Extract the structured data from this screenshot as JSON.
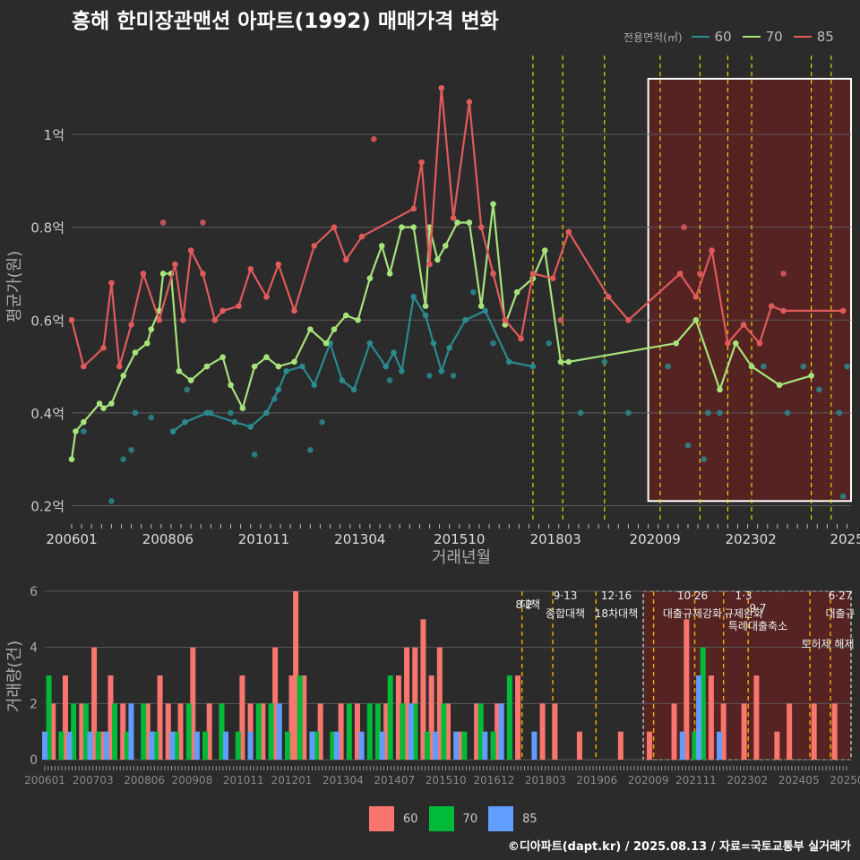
{
  "title": "흥해 한미장관맨션 아파트(1992) 매매가격 변화",
  "credit": "©디아파트(dapt.kr) / 2025.08.13 / 자료=국토교통부 실거래가",
  "colors": {
    "bg": "#2b2b2b",
    "grid": "#5a5a5a",
    "s60": "#2a8a8e",
    "s70": "#a6e37a",
    "s85": "#e05a5a",
    "v60": "#f8766d",
    "v70": "#00ba38",
    "v85": "#619cff",
    "policy": "#e6d200",
    "policy2": "#e6a800",
    "highlight": "#7a1e1e"
  },
  "chart_data": [
    {
      "type": "line",
      "title": "흥해 한미장관맨션 아파트(1992) 매매가격 변화",
      "xlabel": "거래년월",
      "ylabel": "평균가(원)",
      "legend_title": "전용면적(㎡)",
      "xlim": [
        2006.0,
        2025.6
      ],
      "ylim": [
        0.17,
        1.17
      ],
      "x_ticks": [
        "200601",
        "200806",
        "201011",
        "201304",
        "201510",
        "201803",
        "202009",
        "202302",
        "2025"
      ],
      "y_ticks": [
        "0.2억",
        "0.4억",
        "0.6억",
        "0.8억",
        "1억"
      ],
      "y_tick_values": [
        0.2,
        0.4,
        0.6,
        0.8,
        1.0
      ],
      "series": [
        {
          "name": "60",
          "x": [
            2008.55,
            2008.85,
            2009.4,
            2010.1,
            2010.5,
            2010.9,
            2011.2,
            2011.4,
            2011.8,
            2012.1,
            2012.5,
            2012.8,
            2013.1,
            2013.5,
            2013.9,
            2014.1,
            2014.3,
            2014.6,
            2014.9,
            2015.1,
            2015.3,
            2015.5,
            2015.9,
            2016.4,
            2017.0,
            2017.6
          ],
          "y": [
            0.36,
            0.38,
            0.4,
            0.38,
            0.37,
            0.4,
            0.45,
            0.49,
            0.5,
            0.46,
            0.55,
            0.47,
            0.45,
            0.55,
            0.5,
            0.53,
            0.49,
            0.65,
            0.61,
            0.55,
            0.49,
            0.54,
            0.6,
            0.62,
            0.51,
            0.5
          ]
        },
        {
          "name": "70",
          "x": [
            2006.0,
            2006.1,
            2006.3,
            2006.7,
            2006.8,
            2007.0,
            2007.3,
            2007.6,
            2007.9,
            2008.0,
            2008.2,
            2008.3,
            2008.5,
            2008.7,
            2009.0,
            2009.4,
            2009.8,
            2010.0,
            2010.3,
            2010.6,
            2010.9,
            2011.2,
            2011.6,
            2012.0,
            2012.4,
            2012.6,
            2012.9,
            2013.2,
            2013.5,
            2013.8,
            2014.0,
            2014.3,
            2014.6,
            2014.9,
            2015.0,
            2015.2,
            2015.4,
            2015.7,
            2016.0,
            2016.3,
            2016.6,
            2016.9,
            2017.2,
            2017.6,
            2017.9,
            2018.3,
            2018.5,
            2021.2,
            2021.7,
            2022.3,
            2022.7,
            2023.1,
            2023.8,
            2024.6
          ],
          "y": [
            0.3,
            0.36,
            0.38,
            0.42,
            0.41,
            0.42,
            0.48,
            0.53,
            0.55,
            0.58,
            0.62,
            0.7,
            0.7,
            0.49,
            0.47,
            0.5,
            0.52,
            0.46,
            0.41,
            0.5,
            0.52,
            0.5,
            0.51,
            0.58,
            0.55,
            0.58,
            0.61,
            0.6,
            0.69,
            0.76,
            0.7,
            0.8,
            0.8,
            0.63,
            0.8,
            0.73,
            0.76,
            0.81,
            0.81,
            0.63,
            0.85,
            0.59,
            0.66,
            0.69,
            0.75,
            0.51,
            0.51,
            0.55,
            0.6,
            0.45,
            0.55,
            0.5,
            0.46,
            0.48
          ]
        },
        {
          "name": "85",
          "x": [
            2006.0,
            2006.3,
            2006.8,
            2007.0,
            2007.2,
            2007.5,
            2007.8,
            2008.2,
            2008.6,
            2008.8,
            2009.0,
            2009.3,
            2009.6,
            2009.8,
            2010.2,
            2010.5,
            2010.9,
            2011.2,
            2011.6,
            2012.1,
            2012.6,
            2012.9,
            2013.3,
            2014.6,
            2014.8,
            2015.0,
            2015.3,
            2015.6,
            2016.0,
            2016.3,
            2016.6,
            2016.9,
            2017.3,
            2017.6,
            2018.1,
            2018.5,
            2019.5,
            2020.0,
            2021.3,
            2021.7,
            2022.1,
            2022.5,
            2022.9,
            2023.3,
            2023.6,
            2023.9,
            2025.4
          ],
          "y": [
            0.6,
            0.5,
            0.54,
            0.68,
            0.5,
            0.59,
            0.7,
            0.6,
            0.72,
            0.6,
            0.75,
            0.7,
            0.6,
            0.62,
            0.63,
            0.71,
            0.65,
            0.72,
            0.62,
            0.76,
            0.8,
            0.73,
            0.78,
            0.84,
            0.94,
            0.72,
            1.1,
            0.82,
            1.07,
            0.8,
            0.7,
            0.6,
            0.56,
            0.7,
            0.69,
            0.79,
            0.65,
            0.6,
            0.7,
            0.65,
            0.75,
            0.55,
            0.59,
            0.55,
            0.63,
            0.62,
            0.62
          ]
        }
      ],
      "scatter_extra": [
        {
          "series": "60",
          "points": [
            [
              2006.3,
              0.36
            ],
            [
              2007.0,
              0.21
            ],
            [
              2007.3,
              0.3
            ],
            [
              2007.5,
              0.32
            ],
            [
              2007.6,
              0.4
            ],
            [
              2008.0,
              0.39
            ],
            [
              2008.9,
              0.45
            ],
            [
              2009.5,
              0.4
            ],
            [
              2010.0,
              0.4
            ],
            [
              2010.6,
              0.31
            ],
            [
              2011.1,
              0.43
            ],
            [
              2012.0,
              0.32
            ],
            [
              2012.3,
              0.38
            ],
            [
              2014.0,
              0.47
            ],
            [
              2015.0,
              0.48
            ],
            [
              2015.6,
              0.48
            ],
            [
              2016.1,
              0.66
            ],
            [
              2016.6,
              0.55
            ],
            [
              2017.6,
              0.5
            ],
            [
              2018.0,
              0.55
            ],
            [
              2018.8,
              0.4
            ],
            [
              2019.4,
              0.51
            ],
            [
              2020.0,
              0.4
            ],
            [
              2021.0,
              0.5
            ],
            [
              2021.5,
              0.33
            ],
            [
              2021.9,
              0.3
            ],
            [
              2022.0,
              0.4
            ],
            [
              2022.3,
              0.4
            ],
            [
              2023.4,
              0.5
            ],
            [
              2024.0,
              0.4
            ],
            [
              2024.4,
              0.5
            ],
            [
              2024.8,
              0.45
            ],
            [
              2025.3,
              0.4
            ],
            [
              2025.4,
              0.22
            ],
            [
              2025.5,
              0.5
            ]
          ]
        },
        {
          "series": "85",
          "points": [
            [
              2008.3,
              0.81
            ],
            [
              2009.3,
              0.81
            ],
            [
              2013.6,
              0.99
            ],
            [
              2018.3,
              0.6
            ],
            [
              2021.4,
              0.8
            ],
            [
              2021.8,
              0.7
            ],
            [
              2023.9,
              0.7
            ]
          ]
        }
      ],
      "policy_lines": [
        2017.6,
        2018.35,
        2019.4,
        2020.8,
        2021.8,
        2022.5,
        2023.1,
        2024.6,
        2025.1
      ],
      "highlight": {
        "x": [
          2020.5,
          2025.6
        ],
        "y": [
          0.21,
          1.12
        ]
      }
    },
    {
      "type": "bar",
      "ylabel": "거래량(건)",
      "ylim": [
        0,
        6
      ],
      "y_ticks": [
        "0",
        "2",
        "4",
        "6"
      ],
      "y_tick_values": [
        0,
        2,
        4,
        6
      ],
      "x_ticks": [
        "200601",
        "200703",
        "200806",
        "200908",
        "201011",
        "201201",
        "201304",
        "201407",
        "201510",
        "201612",
        "201803",
        "201906",
        "202009",
        "202111",
        "202302",
        "202405",
        "20250"
      ],
      "legend": [
        "60",
        "70",
        "85"
      ],
      "annotations": [
        {
          "date": "8·2",
          "label": "대책"
        },
        {
          "date": "9·13",
          "label": "종합대책"
        },
        {
          "date": "12·16",
          "label": "18차대책"
        },
        {
          "date": "10·26",
          "label": "대출규제강화"
        },
        {
          "date": "1·3",
          "label": "규제완화"
        },
        {
          "date": "9·7",
          "label": "특례대출축소"
        },
        {
          "date": "",
          "label": "토허제 해제"
        },
        {
          "date": "6·27",
          "label": "대출규"
        }
      ],
      "bars": [
        {
          "series": "60",
          "x": [
            2006.2,
            2006.5,
            2006.9,
            2007.2,
            2007.4,
            2007.6,
            2007.9,
            2008.1,
            2008.5,
            2008.8,
            2009.0,
            2009.3,
            2009.6,
            2010.0,
            2010.3,
            2010.8,
            2011.0,
            2011.3,
            2011.6,
            2012.0,
            2012.1,
            2012.3,
            2012.7,
            2013.2,
            2013.6,
            2014.3,
            2014.6,
            2014.8,
            2015.0,
            2015.2,
            2015.4,
            2015.6,
            2015.8,
            2016.1,
            2016.5,
            2017.0,
            2017.5,
            2018.1,
            2018.4,
            2019.0,
            2020.0,
            2020.7,
            2021.3,
            2021.6,
            2022.0,
            2022.2,
            2022.5,
            2023.0,
            2023.3,
            2023.8,
            2024.1,
            2024.7,
            2025.2
          ],
          "y": [
            2,
            3,
            2,
            4,
            1,
            3,
            2,
            1,
            2,
            3,
            2,
            2,
            4,
            2,
            2,
            3,
            2,
            2,
            4,
            3,
            6,
            3,
            2,
            2,
            2,
            2,
            3,
            4,
            4,
            5,
            3,
            4,
            2,
            1,
            2,
            2,
            3,
            2,
            2,
            1,
            1,
            1,
            2,
            5,
            2,
            3,
            2,
            2,
            3,
            1,
            2,
            2,
            2
          ]
        },
        {
          "series": "70",
          "x": [
            2006.1,
            2006.4,
            2006.7,
            2007.0,
            2007.3,
            2007.7,
            2008.0,
            2008.4,
            2008.7,
            2009.2,
            2009.5,
            2009.9,
            2010.3,
            2010.7,
            2011.2,
            2011.5,
            2011.9,
            2012.2,
            2012.6,
            2013.0,
            2013.4,
            2013.9,
            2014.1,
            2014.4,
            2014.7,
            2015.0,
            2015.3,
            2015.7,
            2016.2,
            2016.6,
            2016.9,
            2017.3,
            2021.8,
            2022.0
          ],
          "y": [
            3,
            1,
            2,
            2,
            1,
            2,
            1,
            2,
            1,
            1,
            2,
            1,
            2,
            1,
            2,
            2,
            1,
            3,
            1,
            1,
            2,
            2,
            2,
            3,
            2,
            2,
            1,
            2,
            1,
            2,
            1,
            3,
            1,
            4
          ]
        },
        {
          "series": "85",
          "x": [
            2006.0,
            2006.6,
            2007.1,
            2007.5,
            2008.1,
            2008.6,
            2009.1,
            2009.7,
            2010.4,
            2011.0,
            2011.7,
            2012.5,
            2013.1,
            2013.7,
            2014.2,
            2014.9,
            2015.5,
            2016.0,
            2016.7,
            2017.1,
            2017.9,
            2021.5,
            2021.9,
            2022.4
          ],
          "y": [
            1,
            1,
            1,
            1,
            2,
            1,
            1,
            1,
            1,
            1,
            2,
            1,
            1,
            1,
            1,
            2,
            1,
            1,
            1,
            2,
            1,
            1,
            3,
            1
          ]
        }
      ]
    }
  ]
}
